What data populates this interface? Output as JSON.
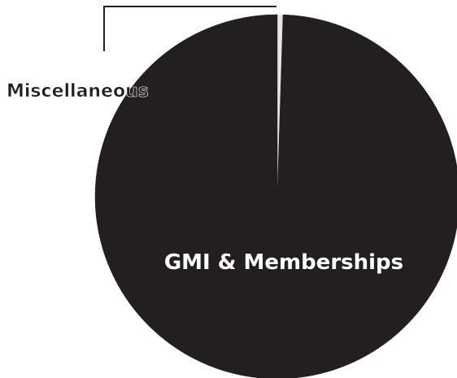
{
  "chart_data": {
    "type": "pie",
    "title": "",
    "slices": [
      {
        "label": "GMI & Memberships",
        "value": 99.5,
        "color": "#231f20"
      },
      {
        "label": "Miscellaneous",
        "value": 0.5,
        "color": "#e6e6e6"
      }
    ],
    "legend": "none"
  }
}
